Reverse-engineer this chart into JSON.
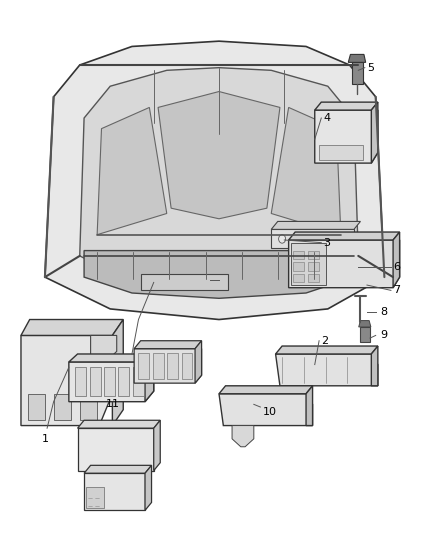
{
  "title": "",
  "background_color": "#ffffff",
  "figure_width": 4.38,
  "figure_height": 5.33,
  "dpi": 100,
  "label_fontsize": 8,
  "label_color": "#000000",
  "line_color": "#555555",
  "line_width": 0.7
}
